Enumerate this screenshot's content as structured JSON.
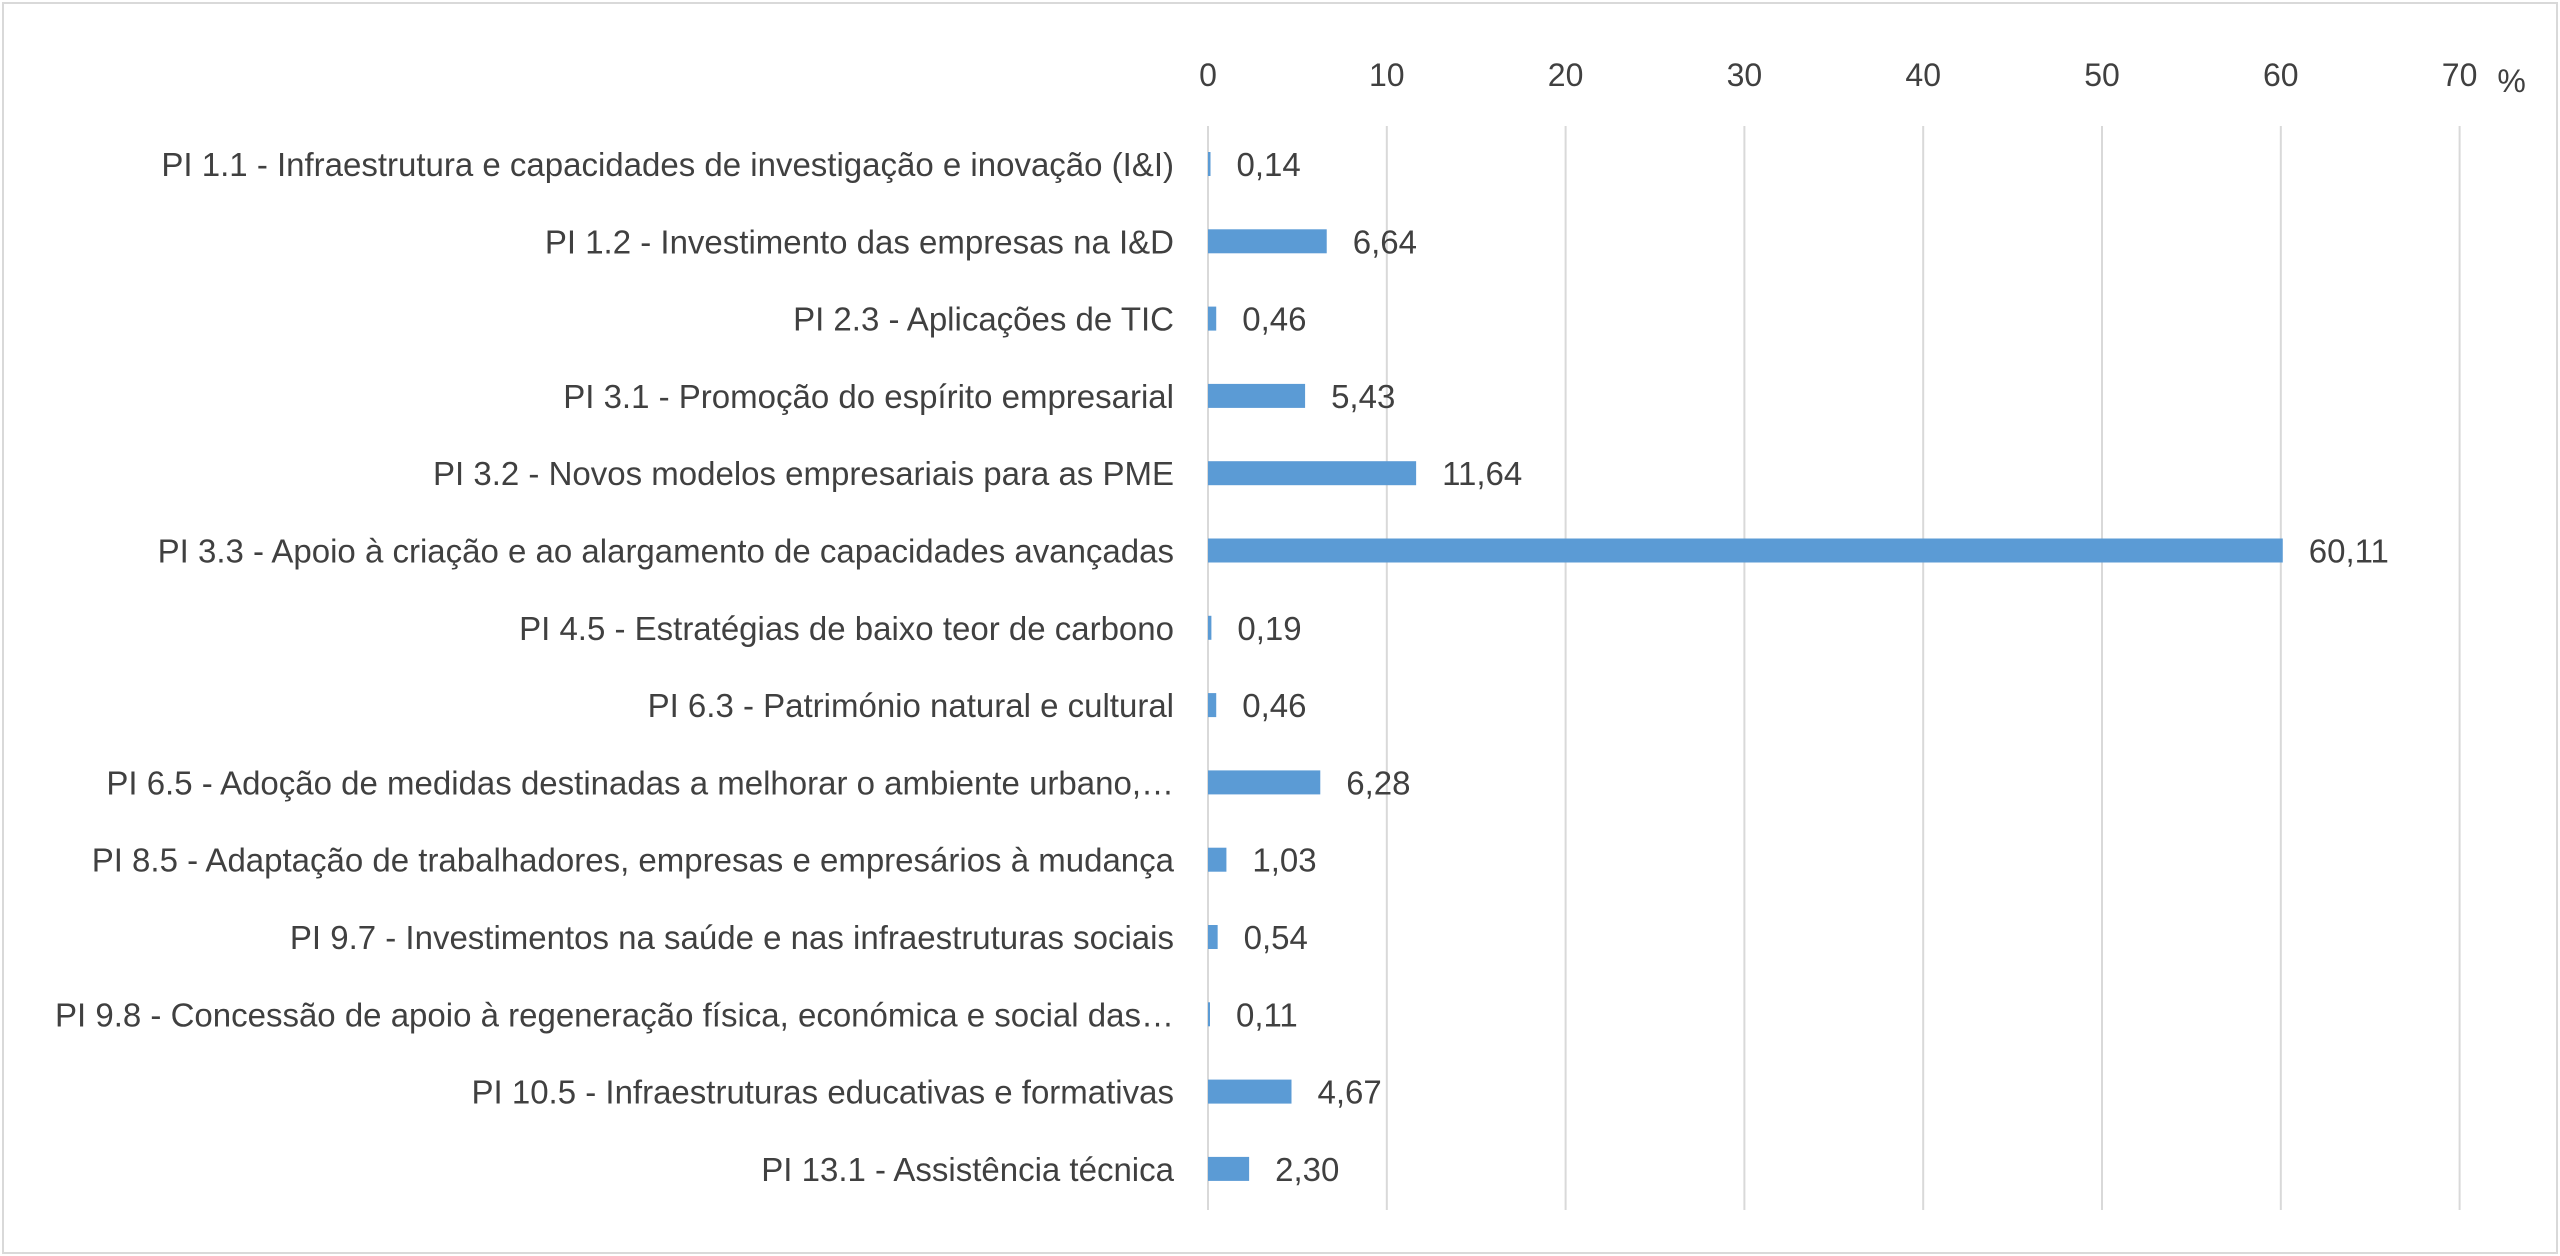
{
  "chart_data": {
    "type": "bar",
    "orientation": "horizontal",
    "categories": [
      "PI 1.1 - Infraestrutura e capacidades de investigação e inovação (I&I)",
      "PI 1.2 - Investimento das empresas na I&D",
      "PI 2.3 - Aplicações de TIC",
      "PI 3.1 - Promoção do espírito empresarial",
      "PI 3.2 - Novos modelos empresariais para as PME",
      "PI 3.3 - Apoio à criação e ao alargamento de capacidades avançadas",
      "PI 4.5 - Estratégias de baixo teor de carbono",
      "PI 6.3 - Património natural e cultural",
      "PI 6.5 - Adoção de medidas destinadas a melhorar o ambiente urbano,…",
      "PI 8.5 - Adaptação de trabalhadores, empresas e empresários à mudança",
      "PI 9.7 - Investimentos na saúde e nas infraestruturas sociais",
      "PI 9.8 - Concessão de apoio à regeneração física, económica e social das…",
      "PI 10.5 - Infraestruturas educativas e formativas",
      "PI 13.1 - Assistência técnica"
    ],
    "values": [
      0.14,
      6.64,
      0.46,
      5.43,
      11.64,
      60.11,
      0.19,
      0.46,
      6.28,
      1.03,
      0.54,
      0.11,
      4.67,
      2.3
    ],
    "data_labels": [
      "0,14",
      "6,64",
      "0,46",
      "5,43",
      "11,64",
      "60,11",
      "0,19",
      "0,46",
      "6,28",
      "1,03",
      "0,54",
      "0,11",
      "4,67",
      "2,30"
    ],
    "xlim": [
      0,
      70
    ],
    "x_ticks": [
      0,
      10,
      20,
      30,
      40,
      50,
      60,
      70
    ],
    "x_tick_labels": [
      "0",
      "10",
      "20",
      "30",
      "40",
      "50",
      "60",
      "70"
    ],
    "unit_label": "%",
    "x_axis_position": "top",
    "grid": true,
    "bar_color": "#5b9bd5",
    "grid_color": "#d9d9d9",
    "text_color": "#404040"
  }
}
